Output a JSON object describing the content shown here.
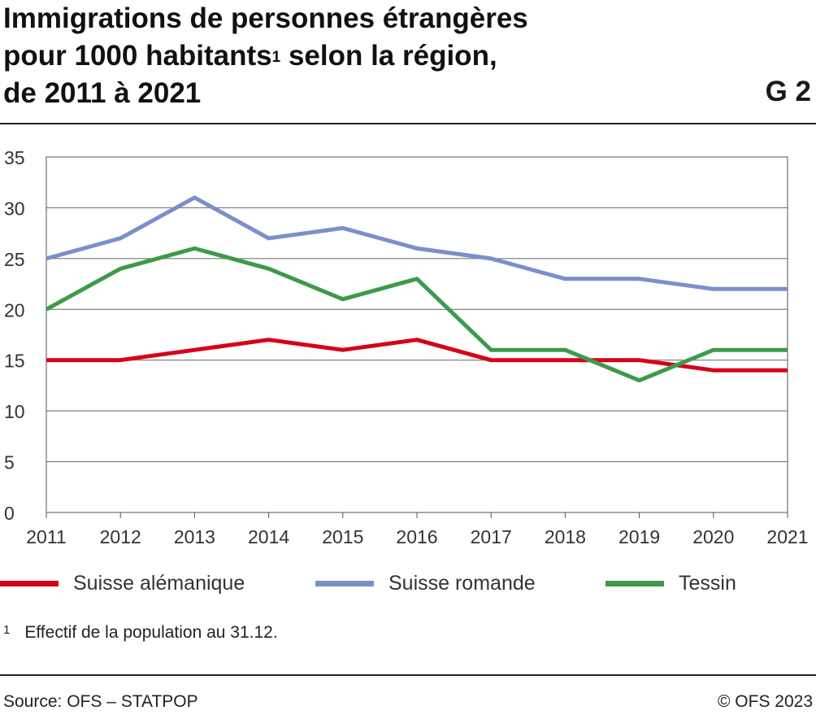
{
  "header": {
    "title_line1": "Immigrations de personnes étrangères",
    "title_line2a": "pour 1000 habitants",
    "title_sup": "1",
    "title_line2b": " selon la région,",
    "title_line3": "de 2011 à 2021",
    "chart_id": "G 2"
  },
  "footnote": {
    "marker": "1",
    "text": "Effectif de la population au 31.12."
  },
  "footer": {
    "source": "Source: OFS – STATPOP",
    "copyright": "© OFS 2023"
  },
  "chart_data": {
    "type": "line",
    "title": "Immigrations de personnes étrangères pour 1000 habitants selon la région, de 2011 à 2021",
    "x": [
      "2011",
      "2012",
      "2013",
      "2014",
      "2015",
      "2016",
      "2017",
      "2018",
      "2019",
      "2020",
      "2021"
    ],
    "ylim": [
      0,
      35
    ],
    "yticks": [
      0,
      5,
      10,
      15,
      20,
      25,
      30,
      35
    ],
    "grid": true,
    "legend_position": "bottom",
    "series": [
      {
        "name": "Suisse alémanique",
        "color": "#d7001b",
        "values": [
          15,
          15,
          16,
          17,
          16,
          17,
          15,
          15,
          15,
          14,
          14
        ]
      },
      {
        "name": "Suisse romande",
        "color": "#7b8fca",
        "values": [
          25,
          27,
          31,
          27,
          28,
          26,
          25,
          23,
          23,
          22,
          22
        ]
      },
      {
        "name": "Tessin",
        "color": "#3d9a4a",
        "values": [
          20,
          24,
          26,
          24,
          21,
          23,
          16,
          16,
          13,
          16,
          16
        ]
      }
    ]
  }
}
